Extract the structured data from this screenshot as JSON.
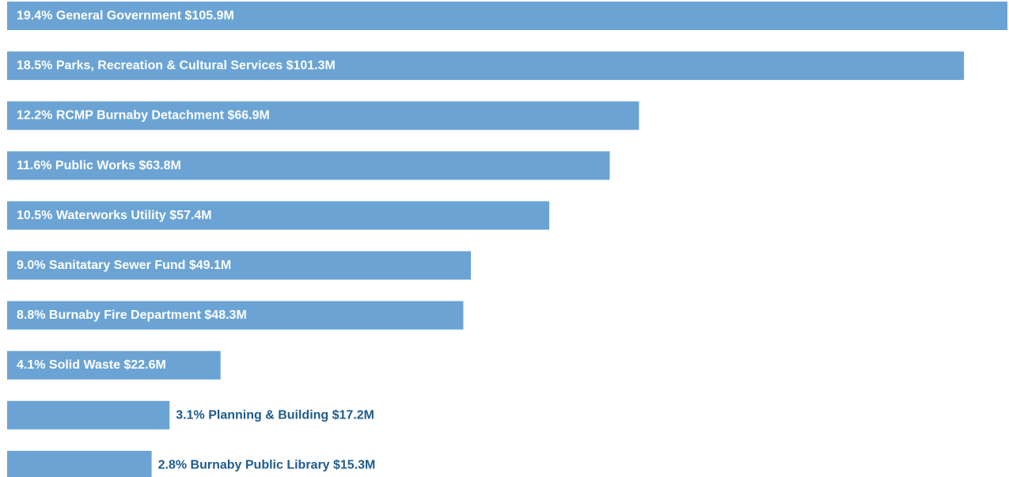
{
  "chart_data": {
    "type": "bar",
    "orientation": "horizontal",
    "title": "",
    "xlabel": "",
    "ylabel": "",
    "grid": false,
    "legend": "none",
    "bar_color": "#6ba4d4",
    "inside_label_color": "#ffffff",
    "outside_label_color": "#1f5c8e",
    "categories": [
      "19.4% General Government $105.9M",
      "18.5% Parks, Recreation & Cultural Services $101.3M",
      "12.2% RCMP Burnaby Detachment $66.9M",
      "11.6% Public Works $63.8M",
      "10.5% Waterworks Utility  $57.4M",
      "9.0% Sanitatary Sewer Fund $49.1M",
      "8.8% Burnaby Fire Department $48.3M",
      "4.1% Solid Waste $22.6M",
      "3.1% Planning & Building $17.2M",
      "2.8% Burnaby Public Library $15.3M"
    ],
    "values": [
      105.9,
      101.3,
      66.9,
      63.8,
      57.4,
      49.1,
      48.3,
      22.6,
      17.2,
      15.3
    ],
    "percents": [
      19.4,
      18.5,
      12.2,
      11.6,
      10.5,
      9.0,
      8.8,
      4.1,
      3.1,
      2.8
    ],
    "label_position": [
      "inside",
      "inside",
      "inside",
      "inside",
      "inside",
      "inside",
      "inside",
      "inside",
      "outside",
      "outside"
    ]
  }
}
